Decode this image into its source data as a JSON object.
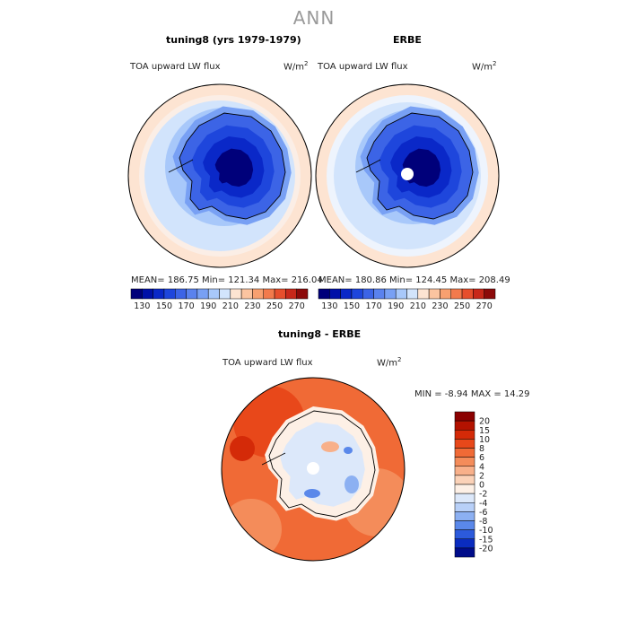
{
  "figure": {
    "title": "ANN",
    "diff_title": "tuning8 - ERBE",
    "diff_min_max": "MIN =   -8.94 MAX =   14.29"
  },
  "panels": [
    {
      "title": "tuning8 (yrs 1979-1979)",
      "variable": "TOA upward LW flux",
      "units_base": "W/m",
      "units_exp": "2",
      "stats": "MEAN= 186.75   Min= 121.34   Max= 216.04"
    },
    {
      "title": "ERBE",
      "variable": "TOA upward LW flux",
      "units_base": "W/m",
      "units_exp": "2",
      "stats": "MEAN= 180.86   Min= 124.45   Max= 208.49"
    },
    {
      "title": "tuning8 - ERBE",
      "variable": "TOA upward LW flux",
      "units_base": "W/m",
      "units_exp": "2",
      "stats": "MIN =   -8.94 MAX =   14.29"
    }
  ],
  "chart_data": [
    {
      "type": "heatmap",
      "title": "tuning8 (yrs 1979-1979)",
      "variable": "TOA upward LW flux",
      "units": "W/m2",
      "projection": "south polar stereographic",
      "stats": {
        "mean": 186.75,
        "min": 121.34,
        "max": 216.04
      },
      "colorbar": {
        "labels": [
          "130",
          "150",
          "170",
          "190",
          "210",
          "230",
          "250",
          "270"
        ],
        "levels": [
          130,
          140,
          150,
          160,
          170,
          180,
          190,
          200,
          210,
          220,
          230,
          240,
          250,
          260,
          270
        ],
        "colors": [
          "#00007a",
          "#0010a8",
          "#0a28c8",
          "#1e46dc",
          "#3c64e6",
          "#5a82ee",
          "#78a0f4",
          "#a8c8fa",
          "#d2e4fc",
          "#fde4d2",
          "#fbc4a0",
          "#f8a070",
          "#f27a4c",
          "#e64e2c",
          "#c8281a",
          "#8c0a0a"
        ]
      }
    },
    {
      "type": "heatmap",
      "title": "ERBE",
      "variable": "TOA upward LW flux",
      "units": "W/m2",
      "projection": "south polar stereographic",
      "stats": {
        "mean": 180.86,
        "min": 124.45,
        "max": 208.49
      },
      "colorbar": {
        "labels": [
          "130",
          "150",
          "170",
          "190",
          "210",
          "230",
          "250",
          "270"
        ],
        "levels": [
          130,
          140,
          150,
          160,
          170,
          180,
          190,
          200,
          210,
          220,
          230,
          240,
          250,
          260,
          270
        ],
        "colors": [
          "#00007a",
          "#0010a8",
          "#0a28c8",
          "#1e46dc",
          "#3c64e6",
          "#5a82ee",
          "#78a0f4",
          "#a8c8fa",
          "#d2e4fc",
          "#fde4d2",
          "#fbc4a0",
          "#f8a070",
          "#f27a4c",
          "#e64e2c",
          "#c8281a",
          "#8c0a0a"
        ]
      }
    },
    {
      "type": "heatmap",
      "title": "tuning8 - ERBE",
      "variable": "TOA upward LW flux",
      "units": "W/m2",
      "projection": "south polar stereographic",
      "stats": {
        "min": -8.94,
        "max": 14.29
      },
      "colorbar": {
        "labels": [
          "20",
          "15",
          "10",
          "8",
          "6",
          "4",
          "2",
          "0",
          "-2",
          "-4",
          "-6",
          "-8",
          "-10",
          "-15",
          "-20"
        ],
        "colors": [
          "#8b0000",
          "#b31200",
          "#d42a08",
          "#e8481a",
          "#f06a36",
          "#f48c5a",
          "#f8b08a",
          "#fbd2b8",
          "#fdf0e6",
          "#dce8fa",
          "#b8d0f8",
          "#8cb0f2",
          "#5a88ea",
          "#2c5adc",
          "#0a2cc0",
          "#000c8a"
        ]
      }
    }
  ]
}
